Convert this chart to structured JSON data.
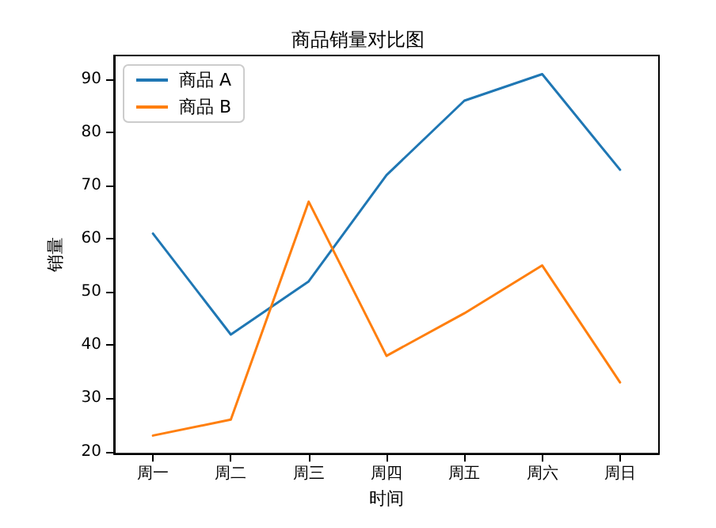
{
  "chart_data": {
    "type": "line",
    "title": "商品销量对比图",
    "xlabel": "时间",
    "ylabel": "销量",
    "categories": [
      "周一",
      "周二",
      "周三",
      "周四",
      "周五",
      "周六",
      "周日"
    ],
    "series": [
      {
        "name": "商品 A",
        "color": "#1f77b4",
        "values": [
          61,
          42,
          52,
          72,
          86,
          91,
          73
        ]
      },
      {
        "name": "商品 B",
        "color": "#ff7f0e",
        "values": [
          23,
          26,
          67,
          38,
          46,
          55,
          33
        ]
      }
    ],
    "ylim": [
      19.6,
      94.5
    ],
    "yticks": [
      20,
      30,
      40,
      50,
      60,
      70,
      80,
      90
    ],
    "grid": false,
    "legend": "top left",
    "marker": "none",
    "line_style": "solid"
  }
}
